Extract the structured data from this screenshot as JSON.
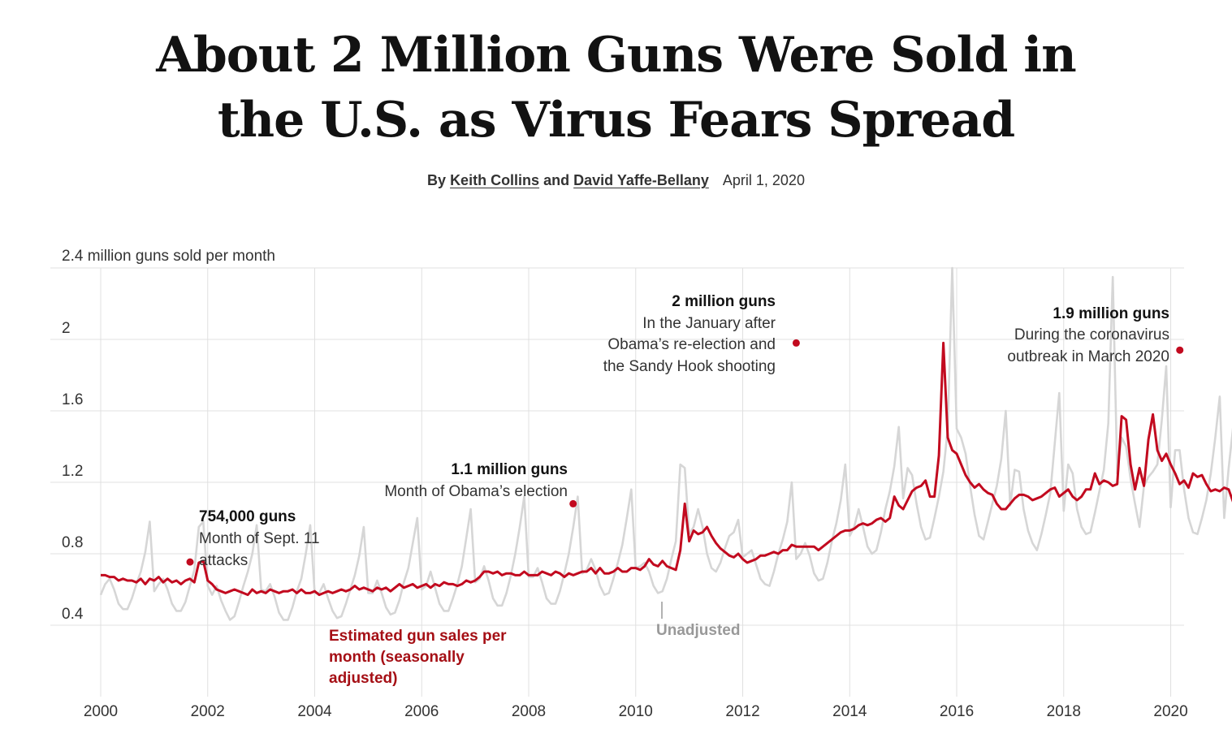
{
  "headline": {
    "line1": "About 2 Million Guns Were Sold in",
    "line2": "the U.S. as Virus Fears Spread"
  },
  "byline": {
    "by": "By",
    "author1": "Keith Collins",
    "and": "and",
    "author2": "David Yaffe-Bellany",
    "date": "April 1, 2020"
  },
  "colors": {
    "adjusted": "#c20a1f",
    "unadjusted": "#d6d6d6",
    "grid": "#e0e0e0",
    "adjusted_label": "#a50f15",
    "unadjusted_label": "#999999"
  },
  "chart_data": {
    "type": "line",
    "unit_label": "2.4 million guns sold per month",
    "ylim": [
      0,
      2.4
    ],
    "yticks": [
      0.4,
      0.8,
      1.2,
      1.6,
      2
    ],
    "ytick_labels": [
      "0.4",
      "0.8",
      "1.2",
      "1.6",
      "2"
    ],
    "xlim": [
      2000,
      2020.25
    ],
    "xticks": [
      2000,
      2002,
      2004,
      2006,
      2008,
      2010,
      2012,
      2014,
      2016,
      2018,
      2020
    ],
    "xtick_labels": [
      "2000",
      "2002",
      "2004",
      "2006",
      "2008",
      "2010",
      "2012",
      "2014",
      "2016",
      "2018",
      "2020"
    ],
    "grid": true,
    "series": [
      {
        "name": "Estimated gun sales per month (seasonally adjusted)",
        "label_lines": [
          "Estimated gun sales per",
          "month (seasonally",
          "adjusted)"
        ],
        "start": "2000-01",
        "values": [
          0.68,
          0.68,
          0.67,
          0.67,
          0.65,
          0.66,
          0.65,
          0.65,
          0.64,
          0.66,
          0.63,
          0.66,
          0.65,
          0.67,
          0.64,
          0.66,
          0.64,
          0.65,
          0.63,
          0.65,
          0.66,
          0.64,
          0.75,
          0.76,
          0.65,
          0.63,
          0.6,
          0.59,
          0.58,
          0.59,
          0.6,
          0.59,
          0.58,
          0.57,
          0.6,
          0.58,
          0.59,
          0.58,
          0.6,
          0.59,
          0.58,
          0.59,
          0.59,
          0.6,
          0.58,
          0.6,
          0.58,
          0.58,
          0.59,
          0.57,
          0.58,
          0.59,
          0.58,
          0.59,
          0.6,
          0.59,
          0.6,
          0.62,
          0.6,
          0.61,
          0.6,
          0.59,
          0.61,
          0.6,
          0.61,
          0.59,
          0.61,
          0.63,
          0.61,
          0.62,
          0.63,
          0.61,
          0.62,
          0.63,
          0.61,
          0.63,
          0.62,
          0.64,
          0.63,
          0.63,
          0.62,
          0.63,
          0.65,
          0.64,
          0.65,
          0.67,
          0.7,
          0.7,
          0.69,
          0.7,
          0.68,
          0.69,
          0.69,
          0.68,
          0.68,
          0.7,
          0.68,
          0.68,
          0.68,
          0.7,
          0.69,
          0.68,
          0.7,
          0.69,
          0.67,
          0.69,
          0.68,
          0.69,
          0.7,
          0.7,
          0.72,
          0.69,
          0.72,
          0.69,
          0.69,
          0.7,
          0.72,
          0.7,
          0.7,
          0.72,
          0.72,
          0.71,
          0.73,
          0.77,
          0.74,
          0.73,
          0.76,
          0.73,
          0.72,
          0.71,
          0.82,
          1.08,
          0.87,
          0.93,
          0.91,
          0.92,
          0.95,
          0.9,
          0.86,
          0.83,
          0.81,
          0.79,
          0.78,
          0.8,
          0.77,
          0.75,
          0.76,
          0.77,
          0.79,
          0.79,
          0.8,
          0.81,
          0.8,
          0.82,
          0.82,
          0.85,
          0.84,
          0.84,
          0.84,
          0.84,
          0.84,
          0.82,
          0.84,
          0.86,
          0.88,
          0.9,
          0.92,
          0.93,
          0.93,
          0.94,
          0.96,
          0.97,
          0.96,
          0.97,
          0.99,
          1.0,
          0.98,
          1.0,
          1.12,
          1.07,
          1.05,
          1.1,
          1.15,
          1.17,
          1.18,
          1.21,
          1.12,
          1.12,
          1.35,
          1.98,
          1.45,
          1.38,
          1.36,
          1.3,
          1.24,
          1.2,
          1.17,
          1.19,
          1.16,
          1.14,
          1.13,
          1.08,
          1.05,
          1.05,
          1.08,
          1.11,
          1.13,
          1.13,
          1.12,
          1.1,
          1.11,
          1.12,
          1.14,
          1.16,
          1.17,
          1.12,
          1.14,
          1.16,
          1.12,
          1.1,
          1.12,
          1.16,
          1.16,
          1.25,
          1.19,
          1.21,
          1.2,
          1.18,
          1.19,
          1.57,
          1.55,
          1.3,
          1.16,
          1.28,
          1.18,
          1.44,
          1.58,
          1.38,
          1.32,
          1.36,
          1.3,
          1.25,
          1.19,
          1.21,
          1.17,
          1.25,
          1.23,
          1.24,
          1.19,
          1.15,
          1.16,
          1.15,
          1.17,
          1.16,
          1.09,
          1.18,
          1.23,
          1.17,
          1.1,
          1.08,
          1.08,
          1.05,
          1.05,
          1.04,
          1.06,
          1.08,
          1.09,
          1.1,
          1.05,
          1.07,
          1.08,
          1.1,
          1.1,
          1.09,
          1.19,
          1.15,
          1.15,
          1.14,
          1.11,
          1.14,
          1.28,
          1.2,
          1.94
        ]
      },
      {
        "name": "Unadjusted",
        "label": "Unadjusted",
        "start": "2000-01",
        "values": [
          0.57,
          0.63,
          0.66,
          0.6,
          0.52,
          0.49,
          0.49,
          0.55,
          0.63,
          0.7,
          0.81,
          0.98,
          0.59,
          0.63,
          0.66,
          0.6,
          0.52,
          0.48,
          0.48,
          0.53,
          0.62,
          0.71,
          0.95,
          0.98,
          0.62,
          0.57,
          0.62,
          0.54,
          0.48,
          0.43,
          0.45,
          0.53,
          0.62,
          0.7,
          0.8,
          0.96,
          0.6,
          0.59,
          0.63,
          0.56,
          0.47,
          0.43,
          0.43,
          0.5,
          0.59,
          0.66,
          0.8,
          0.96,
          0.58,
          0.58,
          0.63,
          0.55,
          0.48,
          0.44,
          0.45,
          0.52,
          0.6,
          0.68,
          0.79,
          0.95,
          0.58,
          0.58,
          0.65,
          0.58,
          0.5,
          0.46,
          0.47,
          0.54,
          0.64,
          0.72,
          0.86,
          1.0,
          0.6,
          0.62,
          0.7,
          0.61,
          0.52,
          0.48,
          0.48,
          0.55,
          0.63,
          0.73,
          0.89,
          1.05,
          0.64,
          0.66,
          0.73,
          0.65,
          0.55,
          0.51,
          0.51,
          0.58,
          0.68,
          0.8,
          0.95,
          1.12,
          0.67,
          0.67,
          0.72,
          0.64,
          0.55,
          0.52,
          0.52,
          0.59,
          0.69,
          0.8,
          0.95,
          1.12,
          0.69,
          0.71,
          0.77,
          0.71,
          0.62,
          0.57,
          0.58,
          0.66,
          0.75,
          0.85,
          1.0,
          1.16,
          0.72,
          0.73,
          0.75,
          0.7,
          0.62,
          0.58,
          0.59,
          0.66,
          0.77,
          0.87,
          1.3,
          1.28,
          0.91,
          0.95,
          1.05,
          0.95,
          0.8,
          0.72,
          0.7,
          0.75,
          0.83,
          0.9,
          0.92,
          0.99,
          0.78,
          0.8,
          0.82,
          0.74,
          0.66,
          0.63,
          0.62,
          0.7,
          0.8,
          0.88,
          0.98,
          1.2,
          0.77,
          0.8,
          0.86,
          0.79,
          0.69,
          0.65,
          0.66,
          0.75,
          0.87,
          0.97,
          1.1,
          1.3,
          0.9,
          0.95,
          1.05,
          0.95,
          0.84,
          0.8,
          0.82,
          0.92,
          1.05,
          1.15,
          1.29,
          1.51,
          1.11,
          1.28,
          1.24,
          1.08,
          0.95,
          0.88,
          0.89,
          1.0,
          1.12,
          1.26,
          1.5,
          2.4,
          1.5,
          1.45,
          1.36,
          1.18,
          1.02,
          0.9,
          0.88,
          0.98,
          1.08,
          1.18,
          1.33,
          1.6,
          1.07,
          1.27,
          1.26,
          1.05,
          0.93,
          0.86,
          0.82,
          0.91,
          1.02,
          1.14,
          1.42,
          1.7,
          1.04,
          1.3,
          1.25,
          1.05,
          0.95,
          0.91,
          0.92,
          1.03,
          1.15,
          1.27,
          1.53,
          2.35,
          1.25,
          1.45,
          1.4,
          1.22,
          1.08,
          0.95,
          1.18,
          1.23,
          1.26,
          1.3,
          1.55,
          1.85,
          1.06,
          1.38,
          1.38,
          1.16,
          1.0,
          0.92,
          0.91,
          1.0,
          1.1,
          1.25,
          1.45,
          1.68,
          1.0,
          1.28,
          1.51,
          1.12,
          0.98,
          0.91,
          0.88,
          0.82,
          0.96,
          1.07,
          1.25,
          1.54,
          0.93,
          1.15,
          1.33,
          0.99,
          0.92,
          0.88,
          0.82,
          1.07,
          1.13,
          1.21,
          1.35,
          1.61,
          1.01,
          1.55,
          2.45
        ]
      }
    ],
    "annotations": [
      {
        "title": "754,000 guns",
        "lines": [
          "Month of Sept. 11",
          "attacks"
        ],
        "x": 2001.67,
        "y": 0.754
      },
      {
        "title": "1.1 million guns",
        "lines": [
          "Month of Obama’s election"
        ],
        "x": 2008.83,
        "y": 1.08
      },
      {
        "title": "2 million guns",
        "lines": [
          "In the January after",
          "Obama’s re-election and",
          "the Sandy Hook shooting"
        ],
        "x": 2013.0,
        "y": 1.98
      },
      {
        "title": "1.9 million guns",
        "lines": [
          "During the coronavirus",
          "outbreak in March 2020"
        ],
        "x": 2020.17,
        "y": 1.94
      }
    ]
  }
}
